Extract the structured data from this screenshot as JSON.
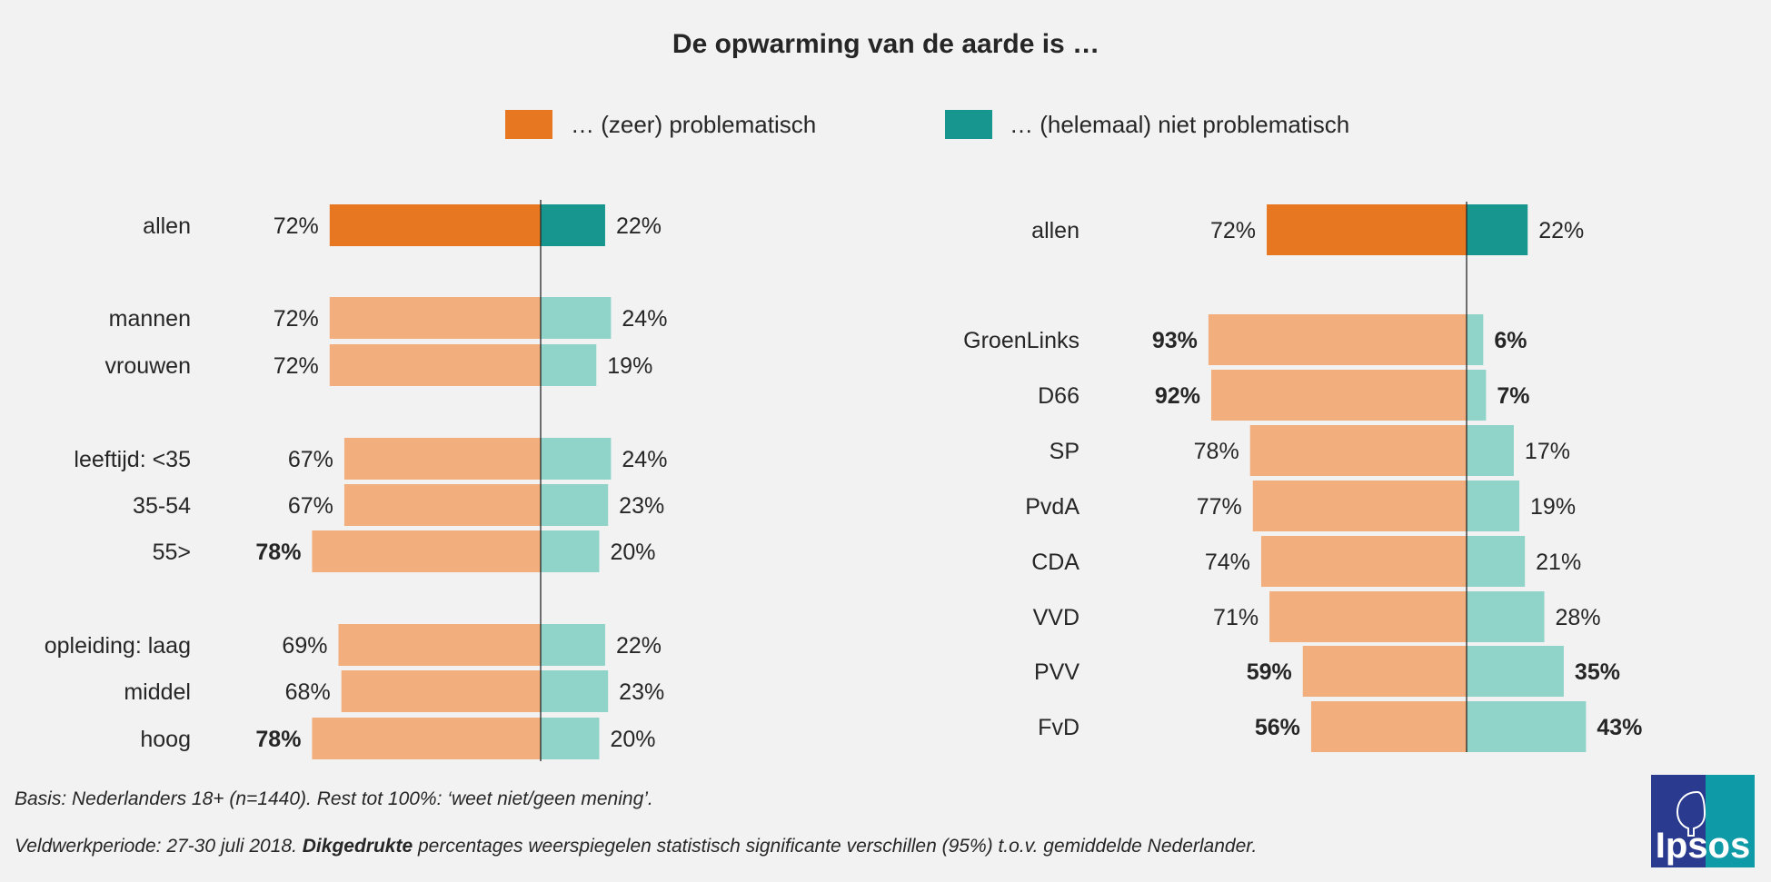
{
  "chart_data": {
    "type": "bar",
    "orientation": "horizontal-diverging",
    "title": "De opwarming van de aarde is …",
    "legend": [
      {
        "label": "… (zeer) problematisch",
        "color": "#e87722"
      },
      {
        "label": "… (helemaal) niet problematisch",
        "color": "#16968f"
      }
    ],
    "panels": [
      {
        "name": "demografie",
        "rows": [
          {
            "label": "allen",
            "neg": 72,
            "pos": 22,
            "neg_bold": false,
            "pos_bold": false,
            "highlight": true
          },
          {
            "label": "mannen",
            "neg": 72,
            "pos": 24,
            "neg_bold": false,
            "pos_bold": false
          },
          {
            "label": "vrouwen",
            "neg": 72,
            "pos": 19,
            "neg_bold": false,
            "pos_bold": false
          },
          {
            "label": "leeftijd: <35",
            "neg": 67,
            "pos": 24,
            "neg_bold": false,
            "pos_bold": false
          },
          {
            "label": "35-54",
            "neg": 67,
            "pos": 23,
            "neg_bold": false,
            "pos_bold": false
          },
          {
            "label": "55>",
            "neg": 78,
            "pos": 20,
            "neg_bold": true,
            "pos_bold": false
          },
          {
            "label": "opleiding: laag",
            "neg": 69,
            "pos": 22,
            "neg_bold": false,
            "pos_bold": false
          },
          {
            "label": "middel",
            "neg": 68,
            "pos": 23,
            "neg_bold": false,
            "pos_bold": false
          },
          {
            "label": "hoog",
            "neg": 78,
            "pos": 20,
            "neg_bold": true,
            "pos_bold": false
          }
        ]
      },
      {
        "name": "partij",
        "rows": [
          {
            "label": "allen",
            "neg": 72,
            "pos": 22,
            "neg_bold": false,
            "pos_bold": false,
            "highlight": true
          },
          {
            "label": "GroenLinks",
            "neg": 93,
            "pos": 6,
            "neg_bold": true,
            "pos_bold": true
          },
          {
            "label": "D66",
            "neg": 92,
            "pos": 7,
            "neg_bold": true,
            "pos_bold": true
          },
          {
            "label": "SP",
            "neg": 78,
            "pos": 17,
            "neg_bold": false,
            "pos_bold": false
          },
          {
            "label": "PvdA",
            "neg": 77,
            "pos": 19,
            "neg_bold": false,
            "pos_bold": false
          },
          {
            "label": "CDA",
            "neg": 74,
            "pos": 21,
            "neg_bold": false,
            "pos_bold": false
          },
          {
            "label": "VVD",
            "neg": 71,
            "pos": 28,
            "neg_bold": false,
            "pos_bold": false
          },
          {
            "label": "PVV",
            "neg": 59,
            "pos": 35,
            "neg_bold": true,
            "pos_bold": true
          },
          {
            "label": "FvD",
            "neg": 56,
            "pos": 43,
            "neg_bold": true,
            "pos_bold": true
          }
        ]
      }
    ],
    "value_suffix": "%",
    "colors": {
      "neg_strong": "#e87722",
      "pos_strong": "#16968f",
      "neg_light": "#f2ae7c",
      "pos_light": "#90d3c9"
    }
  },
  "footnotes": {
    "basis": "Basis: Nederlanders 18+ (n=1440). Rest tot 100%: ‘weet niet/geen mening’.",
    "veld_pre": "Veldwerkperiode: 27-30 juli 2018. ",
    "veld_bold": "Dikgedrukte",
    "veld_post": " percentages weerspiegelen statistisch significante verschillen (95%) t.o.v. gemiddelde Nederlander."
  },
  "logo": {
    "text": "Ipsos",
    "color_left": "#2a3a8f",
    "color_right": "#0e9aa7"
  }
}
